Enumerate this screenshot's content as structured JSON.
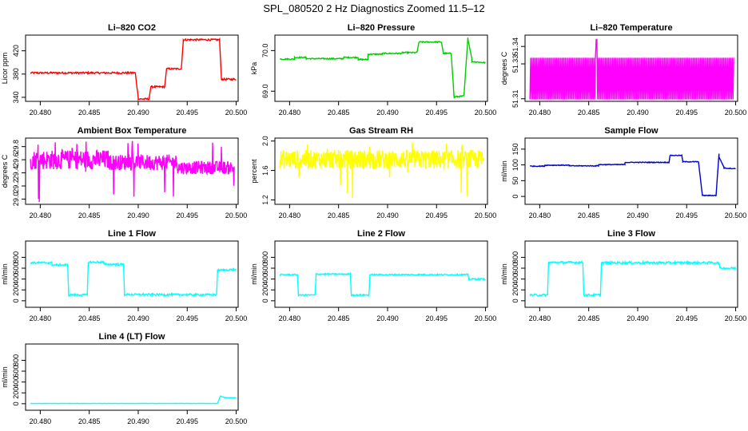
{
  "figure": {
    "title": "SPL_080520  2 Hz Diagnostics Zoomed 11.5–12"
  },
  "chart_data": [
    {
      "type": "line",
      "title": "Li–820 CO2",
      "ylabel": "Licor ppm",
      "color": "#ff0000",
      "xlim": [
        20.4785,
        20.5002
      ],
      "ylim": [
        333,
        447
      ],
      "xticks": [
        "20.480",
        "20.485",
        "20.490",
        "20.495",
        "20.500"
      ],
      "yticks": [
        "340",
        "380",
        "420"
      ],
      "noise": 1.5,
      "segments": [
        {
          "x": [
            20.479,
            20.4897
          ],
          "y": [
            382,
            382
          ]
        },
        {
          "x": [
            20.4897,
            20.49
          ],
          "y": [
            382,
            340
          ]
        },
        {
          "x": [
            20.49,
            20.4911
          ],
          "y": [
            337,
            337
          ]
        },
        {
          "x": [
            20.4911,
            20.4913
          ],
          "y": [
            337,
            359
          ]
        },
        {
          "x": [
            20.4913,
            20.4927
          ],
          "y": [
            358,
            358
          ]
        },
        {
          "x": [
            20.4927,
            20.4929
          ],
          "y": [
            358,
            390
          ]
        },
        {
          "x": [
            20.4929,
            20.4944
          ],
          "y": [
            389,
            389
          ]
        },
        {
          "x": [
            20.4944,
            20.4946
          ],
          "y": [
            389,
            437
          ]
        },
        {
          "x": [
            20.4946,
            20.4983
          ],
          "y": [
            439,
            439
          ]
        },
        {
          "x": [
            20.4983,
            20.4985
          ],
          "y": [
            439,
            370
          ]
        },
        {
          "x": [
            20.4985,
            20.5
          ],
          "y": [
            371,
            371
          ]
        }
      ]
    },
    {
      "type": "line",
      "title": "Li–820 Pressure",
      "ylabel": "kPa",
      "color": "#00cc00",
      "xlim": [
        20.4785,
        20.5002
      ],
      "ylim": [
        68.75,
        70.38
      ],
      "xticks": [
        "20.480",
        "20.485",
        "20.490",
        "20.495",
        "20.500"
      ],
      "yticks": [
        "69.0",
        "70.0"
      ],
      "noise": 0.015,
      "segments": [
        {
          "x": [
            20.479,
            20.4805
          ],
          "y": [
            69.79,
            69.79
          ]
        },
        {
          "x": [
            20.4805,
            20.4817
          ],
          "y": [
            69.83,
            69.83
          ]
        },
        {
          "x": [
            20.4817,
            20.4855
          ],
          "y": [
            69.8,
            69.8
          ]
        },
        {
          "x": [
            20.4855,
            20.487
          ],
          "y": [
            69.83,
            69.83
          ]
        },
        {
          "x": [
            20.487,
            20.488
          ],
          "y": [
            69.78,
            69.78
          ]
        },
        {
          "x": [
            20.488,
            20.4895
          ],
          "y": [
            69.91,
            69.91
          ]
        },
        {
          "x": [
            20.4895,
            20.4915
          ],
          "y": [
            69.93,
            69.93
          ]
        },
        {
          "x": [
            20.4915,
            20.493
          ],
          "y": [
            69.95,
            69.95
          ]
        },
        {
          "x": [
            20.493,
            20.4932
          ],
          "y": [
            69.95,
            70.21
          ]
        },
        {
          "x": [
            20.4932,
            20.4955
          ],
          "y": [
            70.21,
            70.21
          ]
        },
        {
          "x": [
            20.4955,
            20.4957
          ],
          "y": [
            70.21,
            69.93
          ]
        },
        {
          "x": [
            20.4957,
            20.4965
          ],
          "y": [
            69.93,
            69.93
          ]
        },
        {
          "x": [
            20.4965,
            20.4968
          ],
          "y": [
            69.93,
            68.82
          ]
        },
        {
          "x": [
            20.4968,
            20.4978
          ],
          "y": [
            68.86,
            68.88
          ]
        },
        {
          "x": [
            20.4978,
            20.4982
          ],
          "y": [
            68.88,
            70.32
          ]
        },
        {
          "x": [
            20.4982,
            20.4986
          ],
          "y": [
            70.3,
            69.8
          ]
        },
        {
          "x": [
            20.4986,
            20.5
          ],
          "y": [
            69.73,
            69.7
          ]
        }
      ]
    },
    {
      "type": "line",
      "title": "Li–820 Temperature",
      "ylabel": "degrees C",
      "color": "#ff00ff",
      "xlim": [
        20.4785,
        20.5002
      ],
      "ylim": [
        51.3085,
        51.3465
      ],
      "xticks": [
        "20.480",
        "20.485",
        "20.490",
        "20.495",
        "20.500"
      ],
      "yticks": [
        "51.31",
        "51.33",
        "51.34"
      ],
      "low": 51.3096,
      "high": 51.3335,
      "spike": {
        "x": 20.4858,
        "y": 51.344
      },
      "range": [
        20.479,
        20.4998
      ]
    },
    {
      "type": "line",
      "title": "Ambient Box Temperature",
      "ylabel": "degrees C",
      "color": "#ff00ff",
      "xlim": [
        20.4785,
        20.5002
      ],
      "ylim": [
        28.92,
        29.93
      ],
      "xticks": [
        "20.480",
        "20.485",
        "20.490",
        "20.495",
        "20.500"
      ],
      "yticks": [
        "29.0",
        "29.2",
        "29.4",
        "29.6",
        "29.8"
      ],
      "band": [
        {
          "x": [
            20.479,
            20.487
          ],
          "y": [
            29.45,
            29.75
          ]
        },
        {
          "x": [
            20.487,
            20.494
          ],
          "y": [
            29.44,
            29.68
          ]
        },
        {
          "x": [
            20.494,
            20.4998
          ],
          "y": [
            29.38,
            29.58
          ]
        }
      ],
      "extremes": [
        28.95,
        29.9
      ]
    },
    {
      "type": "line",
      "title": "Gas Stream RH",
      "ylabel": "percent",
      "color": "#ffff00",
      "xlim": [
        20.4785,
        20.5002
      ],
      "ylim": [
        1.14,
        2.04
      ],
      "xticks": [
        "20.480",
        "20.485",
        "20.490",
        "20.495",
        "20.500"
      ],
      "yticks": [
        "1.2",
        "1.6",
        "2.0"
      ],
      "band": [
        {
          "x": [
            20.479,
            20.4998
          ],
          "y": [
            1.62,
            1.88
          ]
        }
      ],
      "extremes": [
        1.2,
        2.0
      ]
    },
    {
      "type": "line",
      "title": "Sample Flow",
      "ylabel": "ml/min",
      "color": "#0000cc",
      "xlim": [
        20.4785,
        20.5002
      ],
      "ylim": [
        -25,
        185
      ],
      "xticks": [
        "20.480",
        "20.485",
        "20.490",
        "20.495",
        "20.500"
      ],
      "yticks": [
        "0",
        "50",
        "100",
        "150"
      ],
      "noise": 1.2,
      "segments": [
        {
          "x": [
            20.479,
            20.4805
          ],
          "y": [
            96,
            96
          ]
        },
        {
          "x": [
            20.4805,
            20.483
          ],
          "y": [
            99,
            99
          ]
        },
        {
          "x": [
            20.483,
            20.486
          ],
          "y": [
            97,
            97
          ]
        },
        {
          "x": [
            20.486,
            20.4887
          ],
          "y": [
            101,
            101
          ]
        },
        {
          "x": [
            20.4887,
            20.4932
          ],
          "y": [
            108,
            108
          ]
        },
        {
          "x": [
            20.4932,
            20.4933
          ],
          "y": [
            108,
            130
          ]
        },
        {
          "x": [
            20.4933,
            20.4945
          ],
          "y": [
            130,
            130
          ]
        },
        {
          "x": [
            20.4945,
            20.4946
          ],
          "y": [
            130,
            112
          ]
        },
        {
          "x": [
            20.4946,
            20.4962
          ],
          "y": [
            110,
            110
          ]
        },
        {
          "x": [
            20.4962,
            20.4966
          ],
          "y": [
            110,
            5
          ]
        },
        {
          "x": [
            20.4966,
            20.498
          ],
          "y": [
            3,
            3
          ]
        },
        {
          "x": [
            20.498,
            20.4983
          ],
          "y": [
            3,
            135
          ]
        },
        {
          "x": [
            20.4983,
            20.4988
          ],
          "y": [
            125,
            93
          ]
        },
        {
          "x": [
            20.4988,
            20.5
          ],
          "y": [
            90,
            88
          ]
        }
      ]
    },
    {
      "type": "line",
      "title": "Line 1 Flow",
      "ylabel": "ml/min",
      "color": "#00ffff",
      "xlim": [
        20.4785,
        20.5002
      ],
      "ylim": [
        -120,
        1100
      ],
      "xticks": [
        "20.480",
        "20.485",
        "20.490",
        "20.495",
        "20.500"
      ],
      "yticks": [
        "0",
        "200",
        "400",
        "600",
        "800"
      ],
      "noise": 18,
      "segments": [
        {
          "x": [
            20.479,
            20.4812
          ],
          "y": [
            700,
            700
          ]
        },
        {
          "x": [
            20.4812,
            20.4828
          ],
          "y": [
            660,
            660
          ]
        },
        {
          "x": [
            20.4828,
            20.4829
          ],
          "y": [
            660,
            110
          ]
        },
        {
          "x": [
            20.4829,
            20.4848
          ],
          "y": [
            108,
            108
          ]
        },
        {
          "x": [
            20.4848,
            20.4849
          ],
          "y": [
            108,
            710
          ]
        },
        {
          "x": [
            20.4849,
            20.4865
          ],
          "y": [
            710,
            710
          ]
        },
        {
          "x": [
            20.4865,
            20.4885
          ],
          "y": [
            670,
            670
          ]
        },
        {
          "x": [
            20.4885,
            20.4886
          ],
          "y": [
            670,
            105
          ]
        },
        {
          "x": [
            20.4886,
            20.498
          ],
          "y": [
            115,
            110
          ]
        },
        {
          "x": [
            20.498,
            20.4981
          ],
          "y": [
            110,
            560
          ]
        },
        {
          "x": [
            20.4981,
            20.5
          ],
          "y": [
            560,
            575
          ]
        }
      ]
    },
    {
      "type": "line",
      "title": "Line 2 Flow",
      "ylabel": "ml/min",
      "color": "#00ffff",
      "xlim": [
        20.4785,
        20.5002
      ],
      "ylim": [
        -120,
        1100
      ],
      "xticks": [
        "20.480",
        "20.485",
        "20.490",
        "20.495",
        "20.500"
      ],
      "yticks": [
        "0",
        "200",
        "400",
        "600",
        "800"
      ],
      "noise": 12,
      "segments": [
        {
          "x": [
            20.479,
            20.4808
          ],
          "y": [
            480,
            480
          ]
        },
        {
          "x": [
            20.4808,
            20.4809
          ],
          "y": [
            480,
            105
          ]
        },
        {
          "x": [
            20.4809,
            20.4826
          ],
          "y": [
            105,
            105
          ]
        },
        {
          "x": [
            20.4826,
            20.4827
          ],
          "y": [
            105,
            475
          ]
        },
        {
          "x": [
            20.4827,
            20.4862
          ],
          "y": [
            490,
            490
          ]
        },
        {
          "x": [
            20.4862,
            20.4863
          ],
          "y": [
            490,
            105
          ]
        },
        {
          "x": [
            20.4863,
            20.4881
          ],
          "y": [
            105,
            105
          ]
        },
        {
          "x": [
            20.4881,
            20.4882
          ],
          "y": [
            105,
            485
          ]
        },
        {
          "x": [
            20.4882,
            20.4982
          ],
          "y": [
            480,
            480
          ]
        },
        {
          "x": [
            20.4982,
            20.4983
          ],
          "y": [
            480,
            400
          ]
        },
        {
          "x": [
            20.4983,
            20.5
          ],
          "y": [
            400,
            400
          ]
        }
      ]
    },
    {
      "type": "line",
      "title": "Line 3 Flow",
      "ylabel": "ml/min",
      "color": "#00ffff",
      "xlim": [
        20.4785,
        20.5002
      ],
      "ylim": [
        -120,
        1100
      ],
      "xticks": [
        "20.480",
        "20.485",
        "20.490",
        "20.495",
        "20.500"
      ],
      "yticks": [
        "0",
        "200",
        "400",
        "600",
        "800"
      ],
      "noise": 20,
      "segments": [
        {
          "x": [
            20.479,
            20.4808
          ],
          "y": [
            105,
            105
          ]
        },
        {
          "x": [
            20.4808,
            20.4809
          ],
          "y": [
            105,
            700
          ]
        },
        {
          "x": [
            20.4809,
            20.4844
          ],
          "y": [
            705,
            705
          ]
        },
        {
          "x": [
            20.4844,
            20.4845
          ],
          "y": [
            705,
            105
          ]
        },
        {
          "x": [
            20.4845,
            20.4862
          ],
          "y": [
            105,
            105
          ]
        },
        {
          "x": [
            20.4862,
            20.4863
          ],
          "y": [
            105,
            690
          ]
        },
        {
          "x": [
            20.4863,
            20.4983
          ],
          "y": [
            700,
            700
          ]
        },
        {
          "x": [
            20.4983,
            20.4984
          ],
          "y": [
            700,
            600
          ]
        },
        {
          "x": [
            20.4984,
            20.5
          ],
          "y": [
            600,
            600
          ]
        }
      ]
    },
    {
      "type": "line",
      "title": "Line 4 (LT) Flow",
      "ylabel": "ml/min",
      "color": "#00ffff",
      "xlim": [
        20.4785,
        20.5002
      ],
      "ylim": [
        -120,
        1100
      ],
      "xticks": [
        "20.480",
        "20.485",
        "20.490",
        "20.495",
        "20.500"
      ],
      "yticks": [
        "0",
        "200",
        "400",
        "600",
        "800"
      ],
      "noise": 2,
      "segments": [
        {
          "x": [
            20.479,
            20.4981
          ],
          "y": [
            5,
            5
          ]
        },
        {
          "x": [
            20.4981,
            20.4984
          ],
          "y": [
            5,
            150
          ]
        },
        {
          "x": [
            20.4984,
            20.4988
          ],
          "y": [
            140,
            115
          ]
        },
        {
          "x": [
            20.4988,
            20.5
          ],
          "y": [
            112,
            110
          ]
        }
      ]
    }
  ]
}
